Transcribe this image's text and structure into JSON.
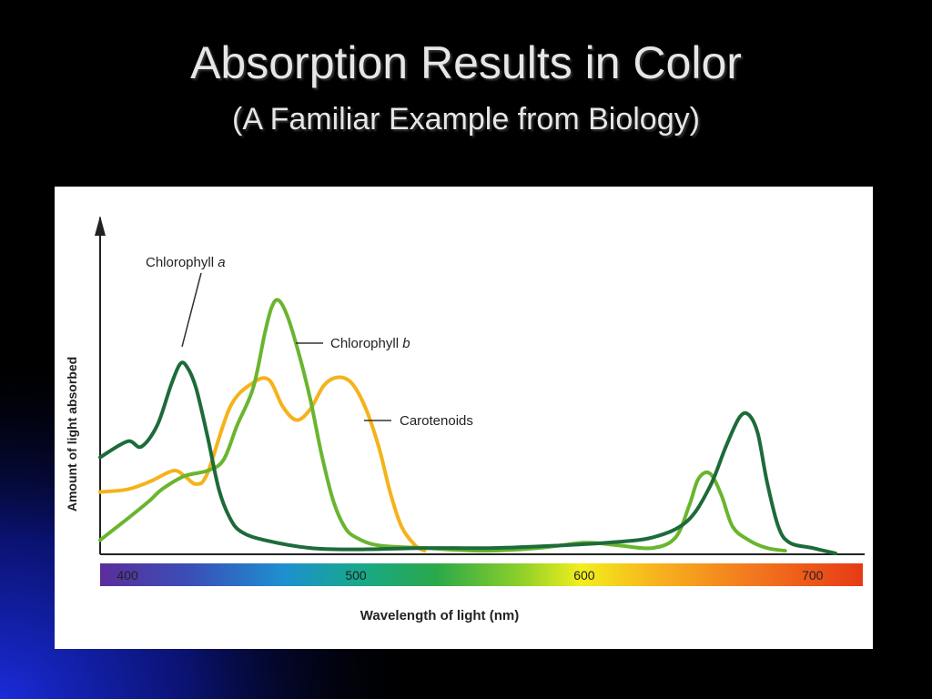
{
  "slide": {
    "title": "Absorption Results in Color",
    "subtitle": "(A Familiar Example from Biology)"
  },
  "colors": {
    "background": "#000000",
    "chlorophyll_a": "#1d6b3a",
    "chlorophyll_b": "#6ab52f",
    "carotenoids": "#f5b21b"
  },
  "chart_data": {
    "type": "line",
    "title": "",
    "xlabel": "Wavelength of light (nm)",
    "ylabel": "Amount of light absorbed",
    "xlim": [
      388,
      722
    ],
    "ylim": [
      0,
      1
    ],
    "y_ticks_shown": false,
    "grid": false,
    "x_tick_labels": [
      "400",
      "500",
      "600",
      "700"
    ],
    "spectrum_bar": true,
    "series": [
      {
        "name": "Chlorophyll a",
        "label_text": "Chlorophyll ",
        "label_italic": "a",
        "color_key": "chlorophyll_a",
        "points": [
          [
            388,
            0.36
          ],
          [
            400,
            0.42
          ],
          [
            406,
            0.4
          ],
          [
            413,
            0.48
          ],
          [
            419,
            0.63
          ],
          [
            423,
            0.71
          ],
          [
            426,
            0.7
          ],
          [
            430,
            0.62
          ],
          [
            435,
            0.44
          ],
          [
            440,
            0.24
          ],
          [
            445,
            0.13
          ],
          [
            450,
            0.08
          ],
          [
            460,
            0.05
          ],
          [
            480,
            0.02
          ],
          [
            500,
            0.015
          ],
          [
            530,
            0.02
          ],
          [
            560,
            0.02
          ],
          [
            590,
            0.03
          ],
          [
            610,
            0.04
          ],
          [
            630,
            0.06
          ],
          [
            645,
            0.12
          ],
          [
            655,
            0.25
          ],
          [
            662,
            0.4
          ],
          [
            668,
            0.51
          ],
          [
            672,
            0.52
          ],
          [
            676,
            0.45
          ],
          [
            680,
            0.27
          ],
          [
            685,
            0.1
          ],
          [
            690,
            0.04
          ],
          [
            700,
            0.02
          ],
          [
            710,
            0.0
          ]
        ]
      },
      {
        "name": "Chlorophyll b",
        "label_text": "Chlorophyll ",
        "label_italic": "b",
        "color_key": "chlorophyll_b",
        "points": [
          [
            388,
            0.05
          ],
          [
            400,
            0.13
          ],
          [
            410,
            0.2
          ],
          [
            415,
            0.24
          ],
          [
            425,
            0.29
          ],
          [
            435,
            0.31
          ],
          [
            442,
            0.35
          ],
          [
            448,
            0.48
          ],
          [
            455,
            0.62
          ],
          [
            460,
            0.82
          ],
          [
            463,
            0.92
          ],
          [
            466,
            0.95
          ],
          [
            470,
            0.89
          ],
          [
            475,
            0.75
          ],
          [
            480,
            0.58
          ],
          [
            485,
            0.37
          ],
          [
            490,
            0.2
          ],
          [
            495,
            0.1
          ],
          [
            500,
            0.06
          ],
          [
            510,
            0.03
          ],
          [
            530,
            0.02
          ],
          [
            555,
            0.01
          ],
          [
            580,
            0.02
          ],
          [
            600,
            0.04
          ],
          [
            615,
            0.03
          ],
          [
            630,
            0.02
          ],
          [
            640,
            0.06
          ],
          [
            646,
            0.18
          ],
          [
            650,
            0.28
          ],
          [
            655,
            0.3
          ],
          [
            660,
            0.22
          ],
          [
            665,
            0.1
          ],
          [
            672,
            0.05
          ],
          [
            680,
            0.02
          ],
          [
            688,
            0.01
          ]
        ]
      },
      {
        "name": "Carotenoids",
        "label_text": "Carotenoids",
        "label_italic": "",
        "color_key": "carotenoids",
        "points": [
          [
            388,
            0.23
          ],
          [
            400,
            0.24
          ],
          [
            410,
            0.27
          ],
          [
            420,
            0.31
          ],
          [
            425,
            0.29
          ],
          [
            430,
            0.26
          ],
          [
            435,
            0.3
          ],
          [
            445,
            0.55
          ],
          [
            455,
            0.64
          ],
          [
            462,
            0.65
          ],
          [
            468,
            0.55
          ],
          [
            474,
            0.5
          ],
          [
            480,
            0.54
          ],
          [
            486,
            0.63
          ],
          [
            492,
            0.66
          ],
          [
            498,
            0.64
          ],
          [
            504,
            0.55
          ],
          [
            510,
            0.4
          ],
          [
            515,
            0.23
          ],
          [
            520,
            0.1
          ],
          [
            526,
            0.03
          ],
          [
            530,
            0.01
          ]
        ]
      }
    ]
  }
}
